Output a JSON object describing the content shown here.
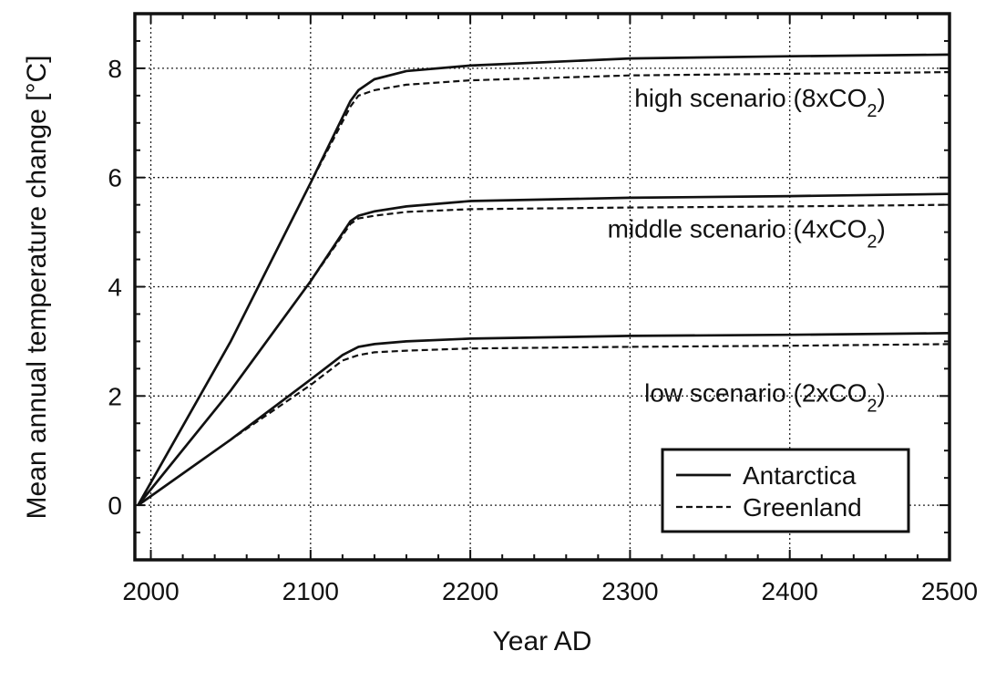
{
  "chart_data": {
    "type": "line",
    "xlabel": "Year AD",
    "ylabel": "Mean annual temperature change [°C]",
    "xlim": [
      1990,
      2500
    ],
    "ylim": [
      -1,
      9
    ],
    "xticks": [
      2000,
      2100,
      2200,
      2300,
      2400,
      2500
    ],
    "yticks": [
      0,
      2,
      4,
      6,
      8
    ],
    "grid": true,
    "legend": {
      "position": "bottom-right",
      "entries": [
        {
          "label": "Antarctica",
          "style": "solid"
        },
        {
          "label": "Greenland",
          "style": "dashed"
        }
      ]
    },
    "annotations": [
      {
        "text_prefix": "high scenario (8xCO",
        "subscript": "2",
        "text_suffix": ")",
        "x": 2460,
        "y": 7.3
      },
      {
        "text_prefix": "middle scenario (4xCO",
        "subscript": "2",
        "text_suffix": ")",
        "x": 2460,
        "y": 4.9
      },
      {
        "text_prefix": "low scenario (2xCO",
        "subscript": "2",
        "text_suffix": ")",
        "x": 2460,
        "y": 1.9
      }
    ],
    "series": [
      {
        "region": "Antarctica",
        "scenario": "high",
        "style": "solid",
        "x": [
          1992,
          2050,
          2100,
          2125,
          2130,
          2140,
          2160,
          2200,
          2300,
          2400,
          2500
        ],
        "y": [
          0,
          3.0,
          5.9,
          7.4,
          7.6,
          7.8,
          7.95,
          8.05,
          8.18,
          8.22,
          8.25
        ]
      },
      {
        "region": "Greenland",
        "scenario": "high",
        "style": "dashed",
        "x": [
          1992,
          2050,
          2100,
          2125,
          2130,
          2140,
          2160,
          2200,
          2300,
          2400,
          2500
        ],
        "y": [
          0,
          3.0,
          5.9,
          7.3,
          7.5,
          7.6,
          7.7,
          7.78,
          7.87,
          7.9,
          7.93
        ]
      },
      {
        "region": "Antarctica",
        "scenario": "middle",
        "style": "solid",
        "x": [
          1992,
          2050,
          2100,
          2125,
          2130,
          2140,
          2160,
          2200,
          2300,
          2400,
          2500
        ],
        "y": [
          0,
          2.1,
          4.1,
          5.2,
          5.3,
          5.38,
          5.47,
          5.57,
          5.63,
          5.66,
          5.7
        ]
      },
      {
        "region": "Greenland",
        "scenario": "middle",
        "style": "dashed",
        "x": [
          1992,
          2050,
          2100,
          2125,
          2130,
          2140,
          2160,
          2200,
          2300,
          2400,
          2500
        ],
        "y": [
          0,
          2.1,
          4.1,
          5.15,
          5.25,
          5.3,
          5.37,
          5.42,
          5.45,
          5.47,
          5.5
        ]
      },
      {
        "region": "Antarctica",
        "scenario": "low",
        "style": "solid",
        "x": [
          1992,
          2050,
          2100,
          2120,
          2130,
          2140,
          2160,
          2200,
          2300,
          2400,
          2500
        ],
        "y": [
          0,
          1.2,
          2.3,
          2.75,
          2.9,
          2.95,
          3.0,
          3.05,
          3.1,
          3.12,
          3.15
        ]
      },
      {
        "region": "Greenland",
        "scenario": "low",
        "style": "dashed",
        "x": [
          1992,
          2050,
          2100,
          2120,
          2130,
          2140,
          2160,
          2200,
          2300,
          2400,
          2500
        ],
        "y": [
          0,
          1.2,
          2.2,
          2.65,
          2.75,
          2.8,
          2.83,
          2.87,
          2.9,
          2.92,
          2.95
        ]
      }
    ]
  }
}
